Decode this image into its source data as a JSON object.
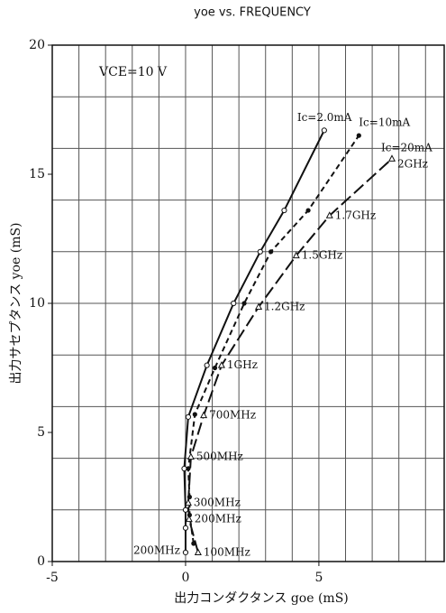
{
  "chart_data": {
    "type": "line",
    "title": "yoe vs. FREQUENCY",
    "annotation": "VCE=10 V",
    "x_label": "出力コンダクタンス goe (mS)",
    "y_label": "出力サセプタンス yoe (mS)",
    "xlim": [
      -5,
      9.7
    ],
    "ylim": [
      0,
      20
    ],
    "xticks": [
      -5,
      0,
      5
    ],
    "yticks": [
      0,
      5,
      10,
      15,
      20
    ],
    "xgrid": [
      -4,
      -3,
      -2,
      -1,
      0,
      1,
      2,
      3,
      4,
      5,
      6,
      7,
      8,
      9
    ],
    "ygrid": [
      2,
      4,
      6,
      8,
      10,
      12,
      14,
      16,
      18
    ],
    "grid": true,
    "frequencies": [
      "100MHz",
      "200MHz",
      "300MHz",
      "500MHz",
      "700MHz",
      "1GHz",
      "1.2GHz",
      "1.5GHz",
      "1.7GHz",
      "2GHz"
    ],
    "series": [
      {
        "name": "Ic=2.0mA",
        "color": "#111111",
        "dash": "none",
        "marker": "circle",
        "x": [
          0,
          0,
          0,
          -0.05,
          0.1,
          0.8,
          1.8,
          2.8,
          3.7,
          5.2
        ],
        "values": [
          0.35,
          1.3,
          2.0,
          3.6,
          5.6,
          7.6,
          10.0,
          12.0,
          13.6,
          16.7
        ]
      },
      {
        "name": "Ic=10mA",
        "color": "#111111",
        "dash": "6,4",
        "marker": "dot",
        "x": [
          0.3,
          0.15,
          0.15,
          0.1,
          0.35,
          1.1,
          2.2,
          3.2,
          4.6,
          6.5
        ],
        "values": [
          0.7,
          1.8,
          2.5,
          3.6,
          5.7,
          7.5,
          10.0,
          12.0,
          13.6,
          16.5
        ]
      },
      {
        "name": "Ic=20mA",
        "color": "#111111",
        "dash": "14,5",
        "marker": "triangle",
        "x": [
          0.47,
          0.13,
          0.1,
          0.2,
          0.68,
          1.35,
          2.74,
          4.15,
          5.4,
          7.74
        ],
        "values": [
          0.35,
          1.64,
          2.27,
          4.05,
          5.66,
          7.6,
          9.86,
          11.85,
          13.4,
          15.6
        ]
      }
    ]
  }
}
